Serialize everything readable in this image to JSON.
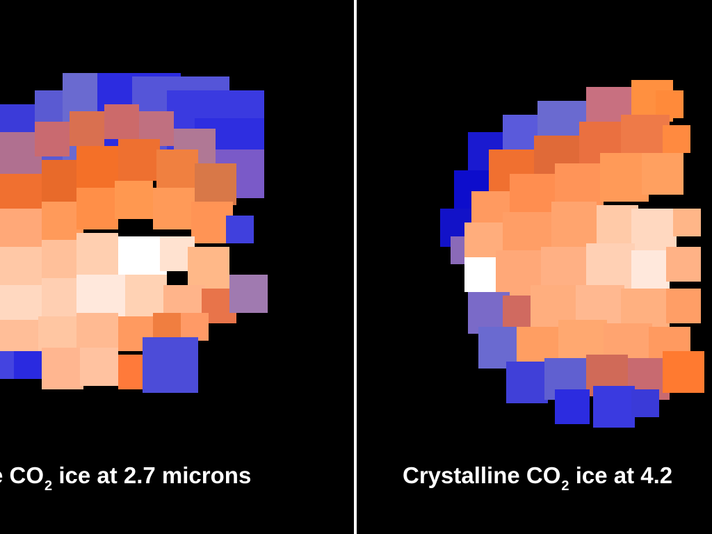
{
  "left_panel": {
    "caption": {
      "pre": "e CO",
      "sub": "2",
      "post": " ice at 2.7 microns"
    },
    "tiles": [
      [
        0,
        150,
        140,
        "#3b3bd9"
      ],
      [
        50,
        130,
        140,
        "#5a5ad2"
      ],
      [
        90,
        105,
        140,
        "#6a6ad0"
      ],
      [
        140,
        105,
        120,
        "#2c2ce0"
      ],
      [
        190,
        110,
        140,
        "#5555d8"
      ],
      [
        240,
        130,
        140,
        "#3a3ae0"
      ],
      [
        280,
        170,
        100,
        "#2e2ee0"
      ],
      [
        310,
        215,
        70,
        "#7a5ac8"
      ],
      [
        0,
        190,
        60,
        "#b07090"
      ],
      [
        50,
        175,
        50,
        "#c96a70"
      ],
      [
        100,
        160,
        50,
        "#d97050"
      ],
      [
        150,
        150,
        50,
        "#cc6a6a"
      ],
      [
        200,
        160,
        50,
        "#c07080"
      ],
      [
        250,
        185,
        60,
        "#b07895"
      ],
      [
        0,
        250,
        60,
        "#f07030"
      ],
      [
        60,
        230,
        60,
        "#e86a2a"
      ],
      [
        110,
        210,
        60,
        "#f47028"
      ],
      [
        170,
        200,
        60,
        "#ee7030"
      ],
      [
        225,
        215,
        60,
        "#f08040"
      ],
      [
        280,
        235,
        60,
        "#d87848"
      ],
      [
        0,
        300,
        70,
        "#ffa878"
      ],
      [
        60,
        290,
        60,
        "#ff9a5a"
      ],
      [
        110,
        270,
        60,
        "#ff8f48"
      ],
      [
        165,
        260,
        55,
        "#ff9850"
      ],
      [
        220,
        270,
        60,
        "#ff9a58"
      ],
      [
        275,
        290,
        60,
        "#ff9455"
      ],
      [
        325,
        310,
        40,
        "#4040dd"
      ],
      [
        0,
        355,
        60,
        "#ffc8a6"
      ],
      [
        60,
        345,
        60,
        "#ffc09a"
      ],
      [
        110,
        335,
        60,
        "#ffcfb0"
      ],
      [
        170,
        340,
        70,
        "#ffffff"
      ],
      [
        230,
        340,
        50,
        "#ffe2d0"
      ],
      [
        270,
        355,
        60,
        "#ffb888"
      ],
      [
        0,
        410,
        60,
        "#ffd8c0"
      ],
      [
        60,
        400,
        60,
        "#ffcfb2"
      ],
      [
        110,
        395,
        70,
        "#ffe8dc"
      ],
      [
        180,
        395,
        60,
        "#ffd2b4"
      ],
      [
        235,
        410,
        60,
        "#ffb48a"
      ],
      [
        290,
        415,
        50,
        "#e8744a"
      ],
      [
        330,
        395,
        55,
        "#a07ab0"
      ],
      [
        0,
        460,
        60,
        "#ffbe98"
      ],
      [
        55,
        455,
        60,
        "#ffc6a2"
      ],
      [
        110,
        450,
        60,
        "#ffba92"
      ],
      [
        170,
        455,
        50,
        "#ff9a60"
      ],
      [
        220,
        450,
        50,
        "#f07e40"
      ],
      [
        260,
        450,
        40,
        "#ff9a66"
      ],
      [
        0,
        505,
        40,
        "#4444e0"
      ],
      [
        20,
        505,
        40,
        "#2a2ae0"
      ],
      [
        60,
        500,
        60,
        "#ffb690"
      ],
      [
        115,
        500,
        55,
        "#ffc2a0"
      ],
      [
        170,
        510,
        50,
        "#ff7a3a"
      ],
      [
        205,
        485,
        80,
        "#4c4cd8"
      ]
    ]
  },
  "right_panel": {
    "caption": {
      "pre": "Crystalline CO",
      "sub": "2",
      "post": " ice at 4.2"
    },
    "tiles": [
      [
        160,
        190,
        60,
        "#1a1ad0"
      ],
      [
        210,
        165,
        60,
        "#5a5adb"
      ],
      [
        260,
        145,
        70,
        "#6a6ad0"
      ],
      [
        330,
        125,
        70,
        "#c87080"
      ],
      [
        395,
        115,
        60,
        "#ff9040"
      ],
      [
        430,
        130,
        40,
        "#ff8a3a"
      ],
      [
        140,
        245,
        60,
        "#0d0dcc"
      ],
      [
        190,
        215,
        70,
        "#f07030"
      ],
      [
        255,
        195,
        70,
        "#e06a38"
      ],
      [
        320,
        175,
        70,
        "#ea7040"
      ],
      [
        380,
        165,
        70,
        "#ee7a48"
      ],
      [
        440,
        180,
        40,
        "#ff8a40"
      ],
      [
        120,
        300,
        55,
        "#1212c8"
      ],
      [
        165,
        275,
        60,
        "#ff9a60"
      ],
      [
        220,
        250,
        70,
        "#ff8e50"
      ],
      [
        285,
        235,
        70,
        "#ff9458"
      ],
      [
        350,
        220,
        70,
        "#ff9a58"
      ],
      [
        410,
        220,
        60,
        "#ffa060"
      ],
      [
        135,
        340,
        40,
        "#8a6ab8"
      ],
      [
        155,
        320,
        60,
        "#ffad7c"
      ],
      [
        210,
        305,
        70,
        "#ff9e66"
      ],
      [
        280,
        290,
        65,
        "#ffa46e"
      ],
      [
        345,
        295,
        60,
        "#ffcaa8"
      ],
      [
        395,
        300,
        65,
        "#ffd8c0"
      ],
      [
        455,
        300,
        40,
        "#ffb688"
      ],
      [
        155,
        370,
        50,
        "#ffffff"
      ],
      [
        200,
        360,
        70,
        "#ffa878"
      ],
      [
        265,
        355,
        70,
        "#ffb084"
      ],
      [
        330,
        350,
        70,
        "#ffd0b4"
      ],
      [
        395,
        360,
        55,
        "#ffe8dc"
      ],
      [
        445,
        355,
        50,
        "#ffb286"
      ],
      [
        160,
        420,
        60,
        "#7a6ac8"
      ],
      [
        210,
        425,
        45,
        "#d06a60"
      ],
      [
        250,
        410,
        70,
        "#ffae7e"
      ],
      [
        315,
        410,
        70,
        "#ffb890"
      ],
      [
        380,
        415,
        70,
        "#ffb080"
      ],
      [
        445,
        415,
        50,
        "#ff9e66"
      ],
      [
        175,
        470,
        60,
        "#6a6ad0"
      ],
      [
        230,
        470,
        60,
        "#ff9e62"
      ],
      [
        290,
        460,
        70,
        "#ffa870"
      ],
      [
        355,
        465,
        70,
        "#ffa470"
      ],
      [
        420,
        470,
        60,
        "#ff9a60"
      ],
      [
        215,
        520,
        60,
        "#4040d8"
      ],
      [
        270,
        515,
        60,
        "#6060d0"
      ],
      [
        330,
        510,
        60,
        "#d06a58"
      ],
      [
        390,
        515,
        60,
        "#c86a70"
      ],
      [
        440,
        505,
        60,
        "#ff7a30"
      ],
      [
        285,
        560,
        50,
        "#2c2ce0"
      ],
      [
        340,
        555,
        60,
        "#3a3ae0"
      ],
      [
        395,
        560,
        40,
        "#3a3ad8"
      ]
    ]
  }
}
